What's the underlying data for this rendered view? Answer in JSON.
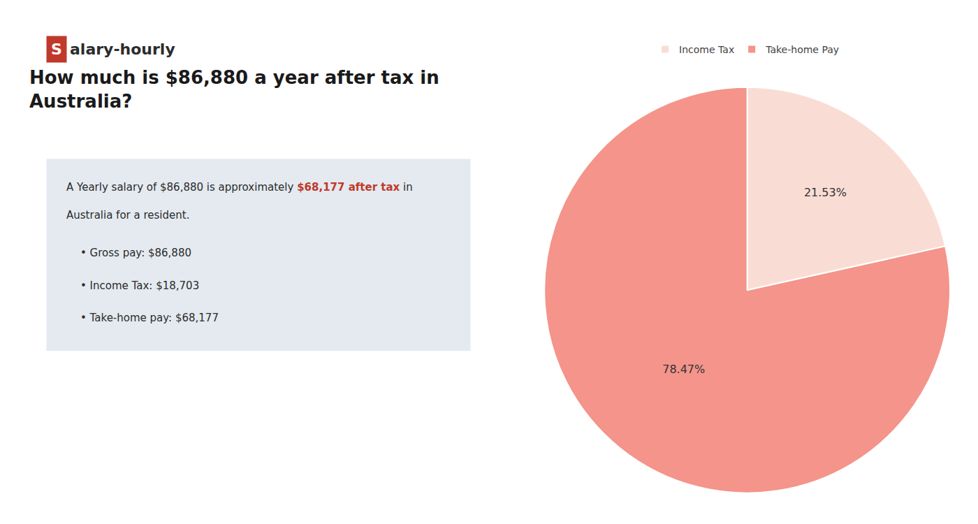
{
  "chart_data": {
    "type": "pie",
    "title": [
      "How much is $86,880 a year after tax in",
      "Australia?"
    ],
    "categories": [
      "Income Tax",
      "Take-home Pay"
    ],
    "values": [
      21.53,
      78.47
    ],
    "value_labels": [
      "21.53%",
      "78.47%"
    ],
    "colors": [
      "#f9ddd5",
      "#f4948a"
    ],
    "data_labels": true,
    "legend": "top",
    "annotations": [
      {
        "text": "S",
        "color": "#c0392b"
      },
      {
        "text": "alary-hourly"
      },
      {
        "parts": [
          {
            "text": "A Yearly salary of $86,880 is approximately "
          },
          {
            "text": "$68,177 after tax",
            "color": "#c0392b"
          },
          {
            "text": " in"
          }
        ]
      },
      {
        "text": "Australia for a resident."
      },
      {
        "text": "• Gross pay: $86,880"
      },
      {
        "text": "• Income Tax: $18,703"
      },
      {
        "text": "• Take-home pay: $68,177"
      }
    ]
  }
}
